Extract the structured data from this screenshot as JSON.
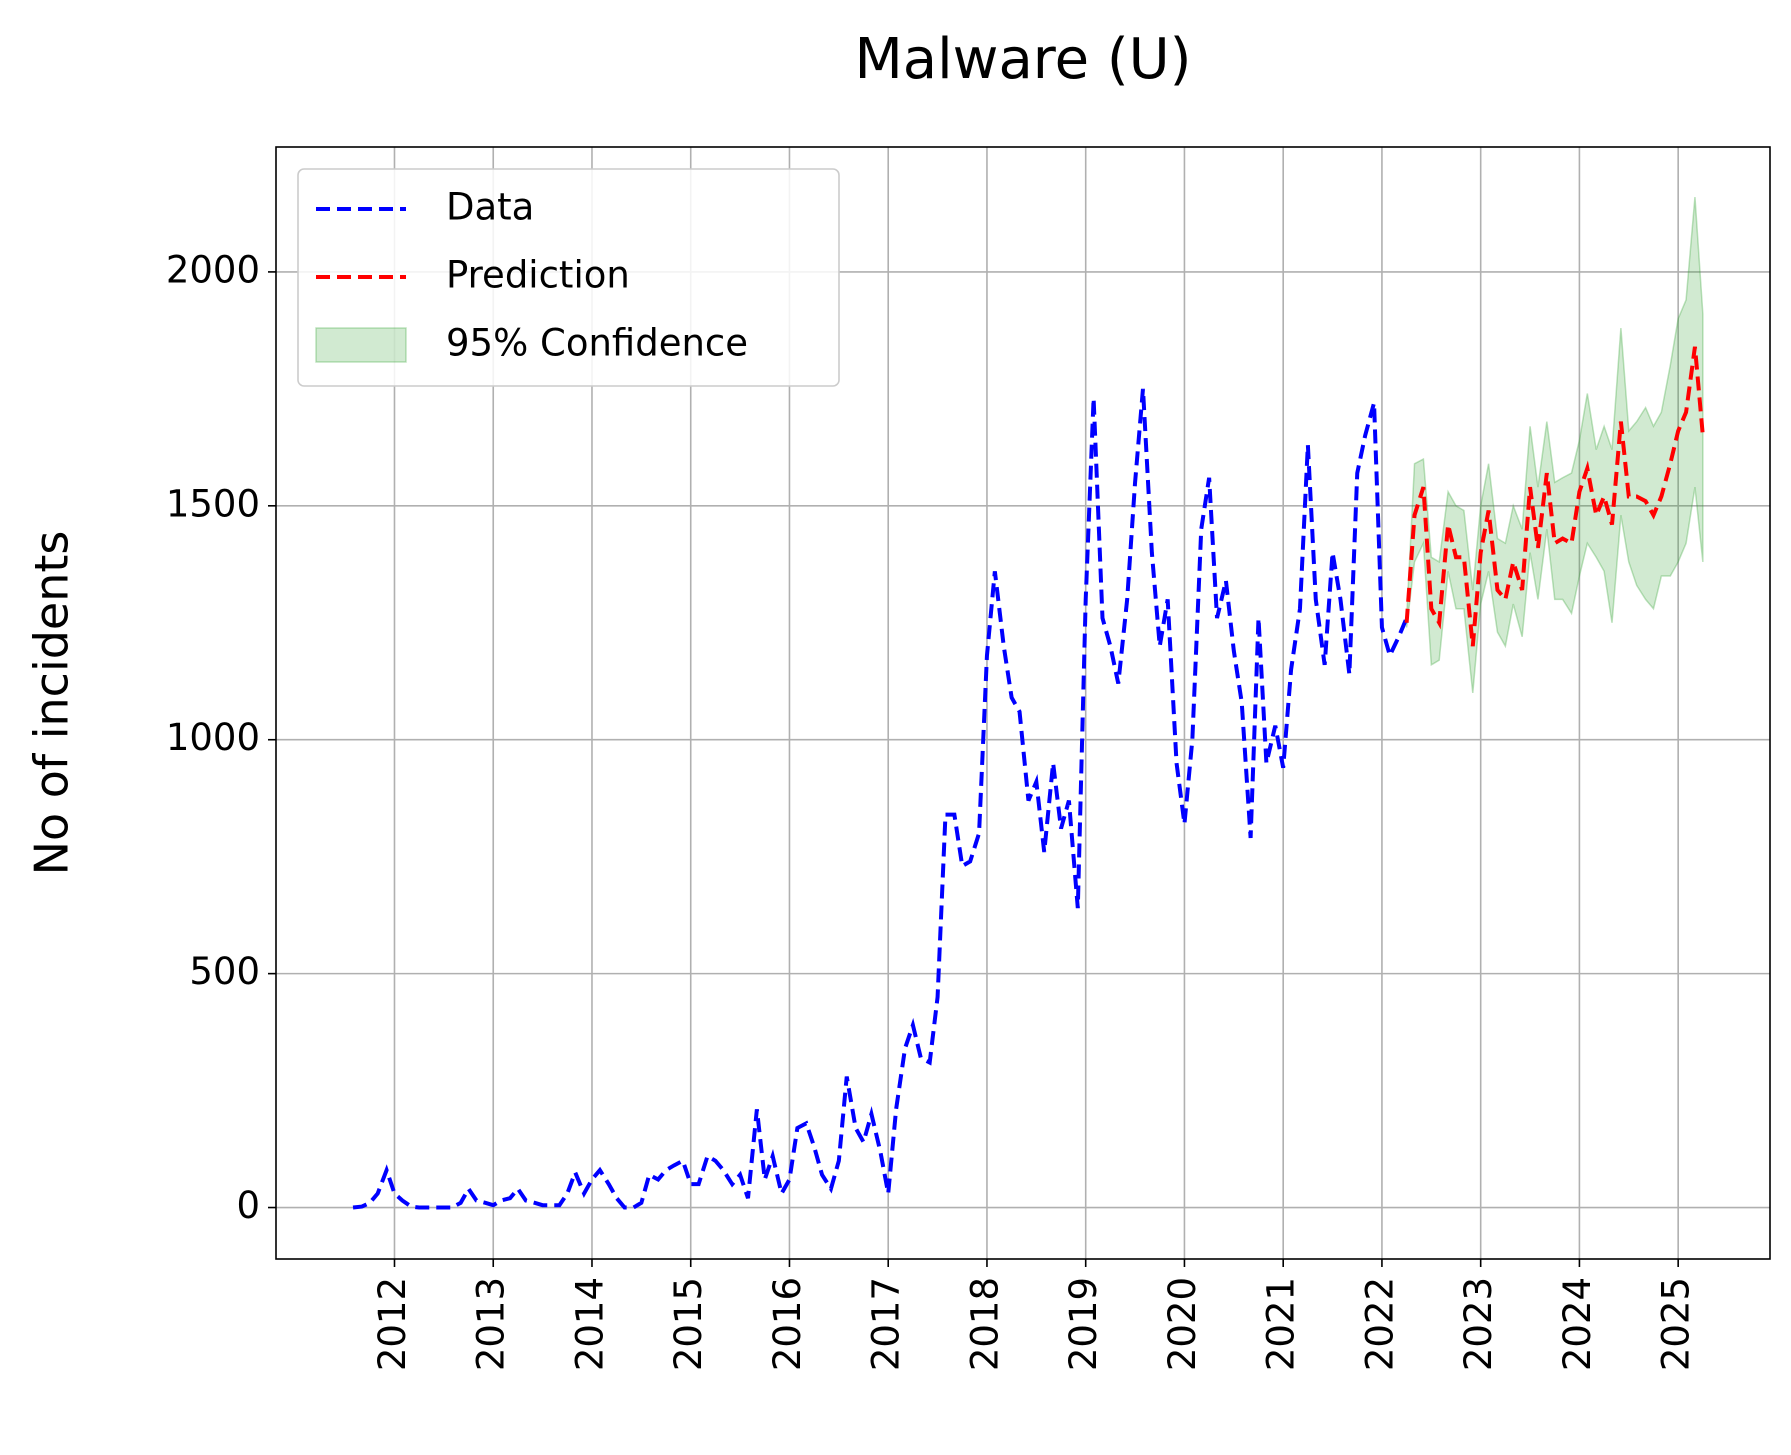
{
  "chart_data": {
    "type": "line",
    "title": "Malware (U)",
    "y_label": "No of incidents",
    "series": [
      {
        "name": "Data",
        "color": "#0000ff",
        "x": [
          2011.58,
          2011.67,
          2011.75,
          2011.83,
          2011.92,
          2012.0,
          2012.08,
          2012.17,
          2012.25,
          2012.33,
          2012.42,
          2012.5,
          2012.58,
          2012.67,
          2012.75,
          2012.83,
          2012.92,
          2013.0,
          2013.08,
          2013.17,
          2013.25,
          2013.33,
          2013.42,
          2013.5,
          2013.58,
          2013.67,
          2013.75,
          2013.83,
          2013.92,
          2014.0,
          2014.08,
          2014.17,
          2014.25,
          2014.33,
          2014.42,
          2014.5,
          2014.58,
          2014.67,
          2014.75,
          2014.83,
          2014.92,
          2015.0,
          2015.08,
          2015.17,
          2015.25,
          2015.33,
          2015.42,
          2015.5,
          2015.58,
          2015.67,
          2015.75,
          2015.83,
          2015.92,
          2016.0,
          2016.08,
          2016.17,
          2016.25,
          2016.33,
          2016.42,
          2016.5,
          2016.58,
          2016.67,
          2016.75,
          2016.83,
          2016.92,
          2017.0,
          2017.08,
          2017.17,
          2017.25,
          2017.33,
          2017.42,
          2017.5,
          2017.58,
          2017.67,
          2017.75,
          2017.83,
          2017.92,
          2018.0,
          2018.08,
          2018.17,
          2018.25,
          2018.33,
          2018.42,
          2018.5,
          2018.58,
          2018.67,
          2018.75,
          2018.83,
          2018.92,
          2019.0,
          2019.08,
          2019.17,
          2019.25,
          2019.33,
          2019.42,
          2019.5,
          2019.58,
          2019.67,
          2019.75,
          2019.83,
          2019.92,
          2020.0,
          2020.08,
          2020.17,
          2020.25,
          2020.33,
          2020.42,
          2020.5,
          2020.58,
          2020.67,
          2020.75,
          2020.83,
          2020.92,
          2021.0,
          2021.08,
          2021.17,
          2021.25,
          2021.33,
          2021.42,
          2021.5,
          2021.58,
          2021.67,
          2021.75,
          2021.83,
          2021.92,
          2022.0,
          2022.08,
          2022.17,
          2022.25
        ],
        "values": [
          0,
          2,
          10,
          30,
          80,
          30,
          15,
          2,
          0,
          0,
          0,
          0,
          0,
          10,
          40,
          15,
          10,
          5,
          15,
          20,
          40,
          15,
          10,
          5,
          5,
          5,
          30,
          75,
          30,
          60,
          80,
          50,
          20,
          0,
          0,
          10,
          70,
          60,
          80,
          90,
          100,
          50,
          50,
          110,
          100,
          80,
          50,
          70,
          20,
          210,
          60,
          110,
          30,
          60,
          170,
          180,
          130,
          70,
          40,
          100,
          280,
          170,
          140,
          200,
          120,
          30,
          210,
          340,
          390,
          320,
          310,
          450,
          840,
          840,
          730,
          740,
          800,
          1180,
          1360,
          1200,
          1090,
          1060,
          870,
          910,
          760,
          950,
          810,
          870,
          640,
          1300,
          1730,
          1260,
          1200,
          1120,
          1300,
          1550,
          1750,
          1400,
          1200,
          1300,
          950,
          820,
          1000,
          1450,
          1560,
          1260,
          1340,
          1190,
          1080,
          790,
          1260,
          950,
          1030,
          940,
          1150,
          1280,
          1630,
          1300,
          1160,
          1400,
          1300,
          1140,
          1570,
          1650,
          1720,
          1240,
          1180,
          1220,
          1260
        ]
      },
      {
        "name": "Prediction",
        "color": "#ff0000",
        "x": [
          2022.25,
          2022.33,
          2022.42,
          2022.5,
          2022.58,
          2022.67,
          2022.75,
          2022.83,
          2022.92,
          2023.0,
          2023.08,
          2023.17,
          2023.25,
          2023.33,
          2023.42,
          2023.5,
          2023.58,
          2023.67,
          2023.75,
          2023.83,
          2023.92,
          2024.0,
          2024.08,
          2024.17,
          2024.25,
          2024.33,
          2024.42,
          2024.5,
          2024.58,
          2024.67,
          2024.75,
          2024.83,
          2024.92,
          2025.0,
          2025.08,
          2025.17,
          2025.25
        ],
        "values": [
          1250,
          1480,
          1540,
          1280,
          1250,
          1460,
          1390,
          1390,
          1200,
          1400,
          1490,
          1320,
          1300,
          1380,
          1320,
          1540,
          1410,
          1570,
          1420,
          1430,
          1420,
          1530,
          1580,
          1480,
          1520,
          1460,
          1680,
          1520,
          1520,
          1510,
          1480,
          1520,
          1590,
          1660,
          1700,
          1840,
          1650
        ]
      }
    ],
    "confidence": {
      "name": "95% Confidence",
      "color": "#2ca02c",
      "x": [
        2022.25,
        2022.33,
        2022.42,
        2022.5,
        2022.58,
        2022.67,
        2022.75,
        2022.83,
        2022.92,
        2023.0,
        2023.08,
        2023.17,
        2023.25,
        2023.33,
        2023.42,
        2023.5,
        2023.58,
        2023.67,
        2023.75,
        2023.83,
        2023.92,
        2024.0,
        2024.08,
        2024.17,
        2024.25,
        2024.33,
        2024.42,
        2024.5,
        2024.58,
        2024.67,
        2024.75,
        2024.83,
        2024.92,
        2025.0,
        2025.08,
        2025.17,
        2025.25
      ],
      "lower": [
        1240,
        1380,
        1420,
        1160,
        1170,
        1360,
        1280,
        1280,
        1100,
        1290,
        1360,
        1230,
        1200,
        1290,
        1220,
        1400,
        1300,
        1450,
        1300,
        1300,
        1270,
        1350,
        1420,
        1390,
        1360,
        1250,
        1480,
        1380,
        1330,
        1300,
        1280,
        1350,
        1350,
        1380,
        1420,
        1540,
        1380
      ],
      "upper": [
        1260,
        1590,
        1600,
        1390,
        1380,
        1530,
        1500,
        1490,
        1320,
        1500,
        1590,
        1430,
        1420,
        1500,
        1450,
        1670,
        1540,
        1680,
        1550,
        1560,
        1570,
        1640,
        1740,
        1620,
        1670,
        1620,
        1880,
        1660,
        1680,
        1710,
        1670,
        1700,
        1800,
        1900,
        1940,
        2160,
        1910
      ]
    },
    "xlim": [
      2010.8,
      2025.93
    ],
    "ylim": [
      -110,
      2267
    ],
    "xticks": [
      2012,
      2013,
      2014,
      2015,
      2016,
      2017,
      2018,
      2019,
      2020,
      2021,
      2022,
      2023,
      2024,
      2025
    ],
    "yticks": [
      0,
      500,
      1000,
      1500,
      2000
    ],
    "grid": true,
    "legend": "upper left"
  }
}
